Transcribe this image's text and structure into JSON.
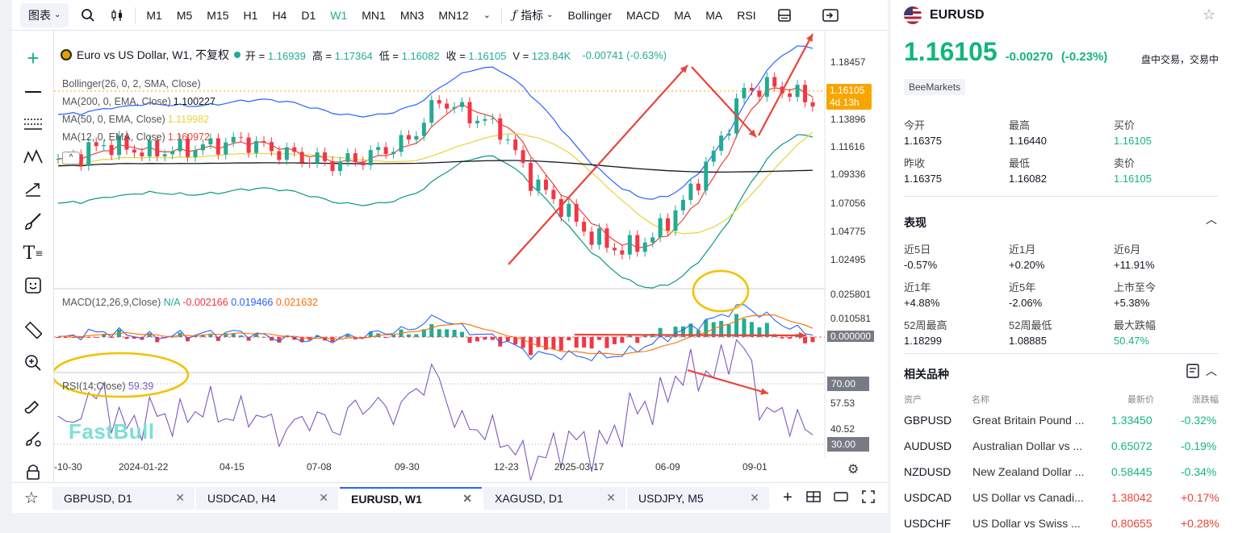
{
  "toolbar": {
    "chart_type": "图表",
    "timeframes": [
      "M1",
      "M5",
      "M15",
      "H1",
      "H4",
      "D1",
      "W1",
      "MN1",
      "MN3",
      "MN12"
    ],
    "active_timeframe": "W1",
    "indicator_label": "指标",
    "indicators": [
      "Bollinger",
      "MACD",
      "MA",
      "MA",
      "RSI"
    ]
  },
  "chart": {
    "title": "Euro vs US Dollar, W1, 不复权",
    "ohlc": [
      {
        "k": "开",
        "v": "1.16939"
      },
      {
        "k": "高",
        "v": "1.17364"
      },
      {
        "k": "低",
        "v": "1.16082"
      },
      {
        "k": "收",
        "v": "1.16105"
      },
      {
        "k": "V",
        "v": "123.84K"
      }
    ],
    "change": "-0.00741 (-0.63%)",
    "legends": [
      {
        "label": "Bollinger(26, 0, 2, SMA, Close)",
        "value": "",
        "color": "#2962ff"
      },
      {
        "label": "MA(200, 0, EMA, Close)",
        "value": "1.100227",
        "color": "#131722"
      },
      {
        "label": "MA(50, 0, EMA, Close)",
        "value": "1.119982",
        "color": "#e8d43a"
      },
      {
        "label": "MA(12, 0, EMA, Close)",
        "value": "1.160972",
        "color": "#e8443b"
      }
    ],
    "price_ticks": [
      "1.18457",
      "1.16105",
      "1.13896",
      "1.11616",
      "1.09336",
      "1.07056",
      "1.04775",
      "1.02495"
    ],
    "last_price": "1.16105",
    "countdown": "4d 13h",
    "macd": {
      "label": "MACD(12,26,9,Close)",
      "na": "N/A",
      "v1": "-0.002166",
      "v2": "0.019466",
      "v3": "0.021632"
    },
    "macd_ticks": [
      "0.025801",
      "0.010581",
      "0.000000"
    ],
    "rsi": {
      "label": "RSI(14;Close)",
      "value": "59.39"
    },
    "rsi_ticks": [
      "70.00",
      "57.53",
      "40.52",
      "30.00"
    ],
    "x_labels": [
      "-10-30",
      "2024-01-22",
      "04-15",
      "07-08",
      "09-30",
      "12-23",
      "2025-03-17",
      "06-09",
      "09-01"
    ],
    "watermark": "FastBull"
  },
  "tabs": [
    {
      "label": "GBPUSD, D1",
      "active": false
    },
    {
      "label": "USDCAD, H4",
      "active": false
    },
    {
      "label": "EURUSD, W1",
      "active": true
    },
    {
      "label": "XAGUSD, D1",
      "active": false
    },
    {
      "label": "USDJPY, M5",
      "active": false
    }
  ],
  "quote": {
    "symbol": "EURUSD",
    "price": "1.16105",
    "change": "-0.00270",
    "change_pct": "(-0.23%)",
    "status": "盘中交易，交易中",
    "broker": "BeeMarkets",
    "stats": [
      {
        "label": "今开",
        "value": "1.16375",
        "green": false
      },
      {
        "label": "最高",
        "value": "1.16440",
        "green": false
      },
      {
        "label": "买价",
        "value": "1.16105",
        "green": true
      },
      {
        "label": "昨收",
        "value": "1.16375",
        "green": false
      },
      {
        "label": "最低",
        "value": "1.16082",
        "green": false
      },
      {
        "label": "卖价",
        "value": "1.16105",
        "green": true
      }
    ]
  },
  "performance": {
    "title": "表现",
    "items": [
      {
        "label": "近5日",
        "value": "-0.57%",
        "green": false
      },
      {
        "label": "近1月",
        "value": "+0.20%",
        "green": false
      },
      {
        "label": "近6月",
        "value": "+11.91%",
        "green": false
      },
      {
        "label": "近1年",
        "value": "+4.88%",
        "green": false
      },
      {
        "label": "近5年",
        "value": "-2.06%",
        "green": false
      },
      {
        "label": "上市至今",
        "value": "+5.38%",
        "green": false
      },
      {
        "label": "52周最高",
        "value": "1.18299",
        "green": false
      },
      {
        "label": "52周最低",
        "value": "1.08885",
        "green": false
      },
      {
        "label": "最大跌幅",
        "value": "50.47%",
        "green": true
      }
    ]
  },
  "related": {
    "title": "相关品种",
    "headers": [
      "资产",
      "名称",
      "最新价",
      "涨跌幅"
    ],
    "rows": [
      {
        "sym": "GBPUSD",
        "name": "Great Britain Pound ...",
        "price": "1.33450",
        "chg": "-0.32%",
        "up": true,
        "neg": true
      },
      {
        "sym": "AUDUSD",
        "name": "Australian Dollar vs ...",
        "price": "0.65072",
        "chg": "-0.19%",
        "up": true,
        "neg": true
      },
      {
        "sym": "NZDUSD",
        "name": "New Zealand Dollar ...",
        "price": "0.58445",
        "chg": "-0.34%",
        "up": true,
        "neg": true
      },
      {
        "sym": "USDCAD",
        "name": "US Dollar vs Canadi...",
        "price": "1.38042",
        "chg": "+0.17%",
        "up": false,
        "neg": false
      },
      {
        "sym": "USDCHF",
        "name": "US Dollar vs Swiss ...",
        "price": "0.80655",
        "chg": "+0.28%",
        "up": false,
        "neg": false
      }
    ]
  },
  "colors": {
    "up": "#22ab94",
    "down": "#f23645",
    "accent": "#2962ff",
    "annot_red": "#e8443b",
    "annot_yellow": "#f2c200"
  }
}
